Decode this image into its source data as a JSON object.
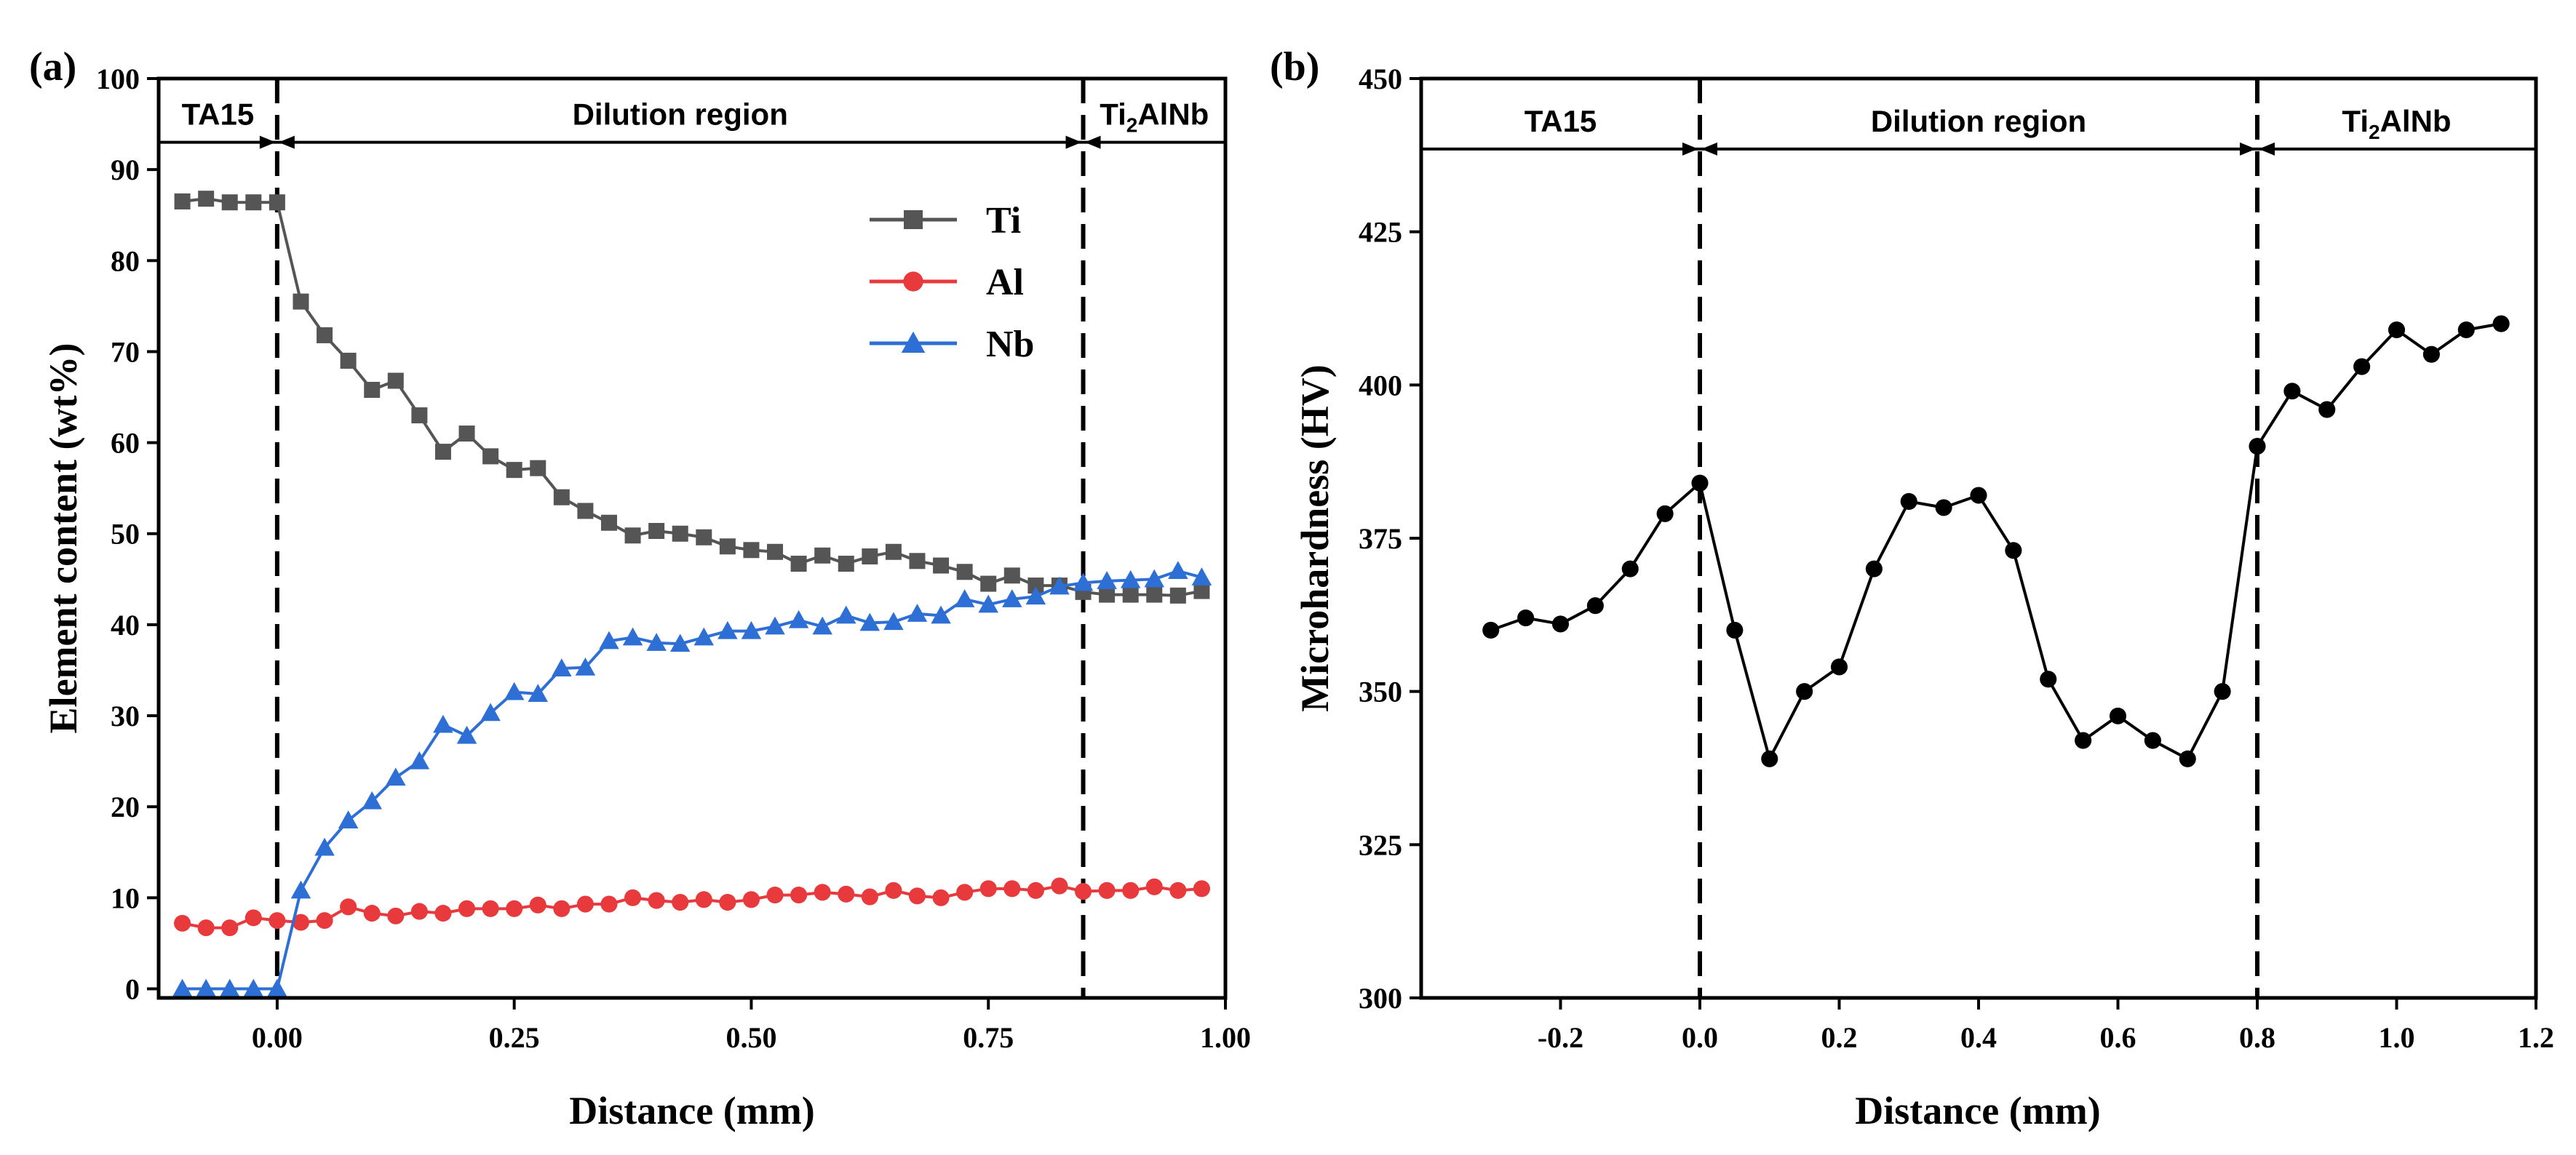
{
  "chart_data": [
    {
      "type": "line",
      "panel_label": "(a)",
      "xlabel": "Distance (mm)",
      "ylabel": "Element content (wt%)",
      "xlim": [
        -0.125,
        1.0
      ],
      "ylim": [
        -1,
        100
      ],
      "xticks": [
        0.0,
        0.25,
        0.5,
        0.75,
        1.0
      ],
      "xtick_labels": [
        "0.00",
        "0.25",
        "0.50",
        "0.75",
        "1.00"
      ],
      "yticks": [
        0,
        10,
        20,
        30,
        40,
        50,
        60,
        70,
        80,
        90,
        100
      ],
      "ytick_labels": [
        "0",
        "10",
        "20",
        "30",
        "40",
        "50",
        "60",
        "70",
        "80",
        "90",
        "100"
      ],
      "boundaries": [
        0.0,
        0.85
      ],
      "regions": [
        {
          "label": "TA15",
          "from": -0.125,
          "to": 0.0
        },
        {
          "label": "Dilution region",
          "from": 0.0,
          "to": 0.85
        },
        {
          "label": "Ti",
          "sub": "2",
          "rest": "AlNb",
          "from": 0.85,
          "to": 1.0
        }
      ],
      "region_arrow_y": 93,
      "legend_position": "top-right",
      "series": [
        {
          "name": "Ti",
          "color": "#555555",
          "marker": "square",
          "x": [
            -0.1,
            -0.075,
            -0.05,
            -0.025,
            0.0,
            0.025,
            0.05,
            0.075,
            0.1,
            0.125,
            0.15,
            0.175,
            0.2,
            0.225,
            0.25,
            0.275,
            0.3,
            0.325,
            0.35,
            0.375,
            0.4,
            0.425,
            0.45,
            0.475,
            0.5,
            0.525,
            0.55,
            0.575,
            0.6,
            0.625,
            0.65,
            0.675,
            0.7,
            0.725,
            0.75,
            0.775,
            0.8,
            0.825,
            0.85,
            0.875,
            0.9,
            0.925,
            0.95,
            0.975
          ],
          "values": [
            86.5,
            86.8,
            86.4,
            86.4,
            86.4,
            75.5,
            71.8,
            69.0,
            65.8,
            66.8,
            63.0,
            59.0,
            61.0,
            58.5,
            57.0,
            57.2,
            54.0,
            52.5,
            51.2,
            49.8,
            50.3,
            50.0,
            49.6,
            48.6,
            48.2,
            48.0,
            46.7,
            47.6,
            46.7,
            47.5,
            48.0,
            47.0,
            46.5,
            45.8,
            44.5,
            45.4,
            44.3,
            44.3,
            43.6,
            43.3,
            43.3,
            43.3,
            43.2,
            43.7
          ]
        },
        {
          "name": "Al",
          "color": "#e8393c",
          "marker": "circle",
          "x": [
            -0.1,
            -0.075,
            -0.05,
            -0.025,
            0.0,
            0.025,
            0.05,
            0.075,
            0.1,
            0.125,
            0.15,
            0.175,
            0.2,
            0.225,
            0.25,
            0.275,
            0.3,
            0.325,
            0.35,
            0.375,
            0.4,
            0.425,
            0.45,
            0.475,
            0.5,
            0.525,
            0.55,
            0.575,
            0.6,
            0.625,
            0.65,
            0.675,
            0.7,
            0.725,
            0.75,
            0.775,
            0.8,
            0.825,
            0.85,
            0.875,
            0.9,
            0.925,
            0.95,
            0.975
          ],
          "values": [
            7.2,
            6.7,
            6.7,
            7.8,
            7.5,
            7.3,
            7.5,
            9.0,
            8.3,
            8.0,
            8.5,
            8.3,
            8.8,
            8.8,
            8.8,
            9.2,
            8.8,
            9.3,
            9.3,
            10.0,
            9.7,
            9.5,
            9.8,
            9.5,
            9.8,
            10.3,
            10.3,
            10.6,
            10.4,
            10.1,
            10.8,
            10.2,
            10.0,
            10.6,
            11.0,
            11.0,
            10.8,
            11.3,
            10.7,
            10.8,
            10.8,
            11.2,
            10.8,
            11.0
          ]
        },
        {
          "name": "Nb",
          "color": "#2e6fd6",
          "marker": "triangle",
          "x": [
            -0.1,
            -0.075,
            -0.05,
            -0.025,
            0.0,
            0.025,
            0.05,
            0.075,
            0.1,
            0.125,
            0.15,
            0.175,
            0.2,
            0.225,
            0.25,
            0.275,
            0.3,
            0.325,
            0.35,
            0.375,
            0.4,
            0.425,
            0.45,
            0.475,
            0.5,
            0.525,
            0.55,
            0.575,
            0.6,
            0.625,
            0.65,
            0.675,
            0.7,
            0.725,
            0.75,
            0.775,
            0.8,
            0.825,
            0.85,
            0.875,
            0.9,
            0.925,
            0.95,
            0.975
          ],
          "values": [
            0,
            0,
            0,
            0,
            0,
            10.8,
            15.5,
            18.5,
            20.6,
            23.2,
            25.0,
            29.0,
            27.8,
            30.3,
            32.6,
            32.4,
            35.2,
            35.3,
            38.2,
            38.6,
            38.0,
            37.9,
            38.6,
            39.3,
            39.3,
            39.8,
            40.5,
            39.8,
            41.0,
            40.2,
            40.3,
            41.2,
            41.0,
            42.8,
            42.2,
            42.8,
            43.1,
            44.2,
            44.6,
            44.8,
            44.9,
            45.0,
            45.9,
            45.2
          ]
        }
      ]
    },
    {
      "type": "line",
      "panel_label": "(b)",
      "xlabel": "Distance (mm)",
      "ylabel": "Microhardness (HV)",
      "xlim": [
        -0.4,
        1.2
      ],
      "ylim": [
        300,
        450
      ],
      "xticks": [
        -0.2,
        0.0,
        0.2,
        0.4,
        0.6,
        0.8,
        1.0,
        1.2
      ],
      "xtick_labels": [
        "-0.2",
        "0.0",
        "0.2",
        "0.4",
        "0.6",
        "0.8",
        "1.0",
        "1.2"
      ],
      "yticks": [
        300,
        325,
        350,
        375,
        400,
        425,
        450
      ],
      "ytick_labels": [
        "300",
        "325",
        "350",
        "375",
        "400",
        "425",
        "450"
      ],
      "boundaries": [
        0.0,
        0.8
      ],
      "regions": [
        {
          "label": "TA15",
          "from": -0.4,
          "to": 0.0
        },
        {
          "label": "Dilution region",
          "from": 0.0,
          "to": 0.8
        },
        {
          "label": "Ti",
          "sub": "2",
          "rest": "AlNb",
          "from": 0.8,
          "to": 1.2
        }
      ],
      "region_arrow_y": 438.5,
      "series": [
        {
          "name": "Microhardness",
          "color": "#000000",
          "marker": "circle",
          "x": [
            -0.3,
            -0.25,
            -0.2,
            -0.15,
            -0.1,
            -0.05,
            0.0,
            0.05,
            0.1,
            0.15,
            0.2,
            0.25,
            0.3,
            0.35,
            0.4,
            0.45,
            0.5,
            0.55,
            0.6,
            0.65,
            0.7,
            0.75,
            0.8,
            0.85,
            0.9,
            0.95,
            1.0,
            1.05,
            1.1,
            1.15
          ],
          "values": [
            360,
            362,
            361,
            364,
            370,
            379,
            384,
            360,
            339,
            350,
            354,
            370,
            381,
            380,
            382,
            373,
            352,
            342,
            346,
            342,
            339,
            350,
            390,
            399,
            396,
            403,
            409,
            405,
            409,
            410
          ]
        }
      ]
    }
  ]
}
